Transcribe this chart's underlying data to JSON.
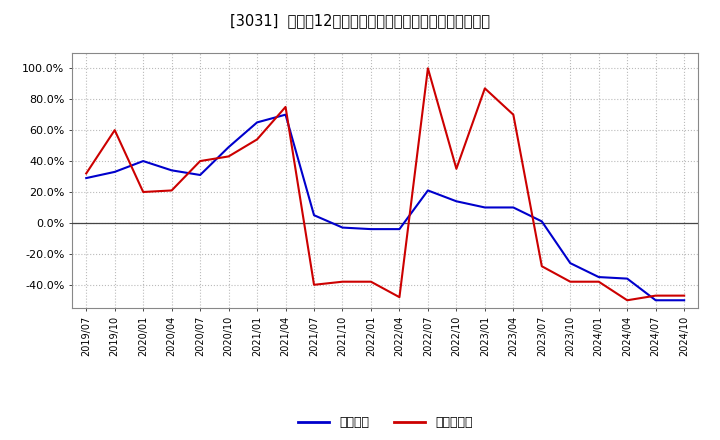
{
  "title": "[3031]  利益だ12か月移動合計の対前年同期増減率の推移",
  "ylim": [
    -0.55,
    1.1
  ],
  "yticks": [
    -0.4,
    -0.2,
    0.0,
    0.2,
    0.4,
    0.6,
    0.8,
    1.0
  ],
  "ytick_labels": [
    "-40.0%",
    "-20.0%",
    "0.0%",
    "20.0%",
    "40.0%",
    "60.0%",
    "80.0%",
    "100.0%"
  ],
  "legend_labels": [
    "経常利益",
    "当期純利益"
  ],
  "line_colors": [
    "#0000cc",
    "#cc0000"
  ],
  "background_color": "#ffffff",
  "plot_bg_color": "#ffffff",
  "grid_color": "#bbbbbb",
  "dates": [
    "2019/07",
    "2019/10",
    "2020/01",
    "2020/04",
    "2020/07",
    "2020/10",
    "2021/01",
    "2021/04",
    "2021/07",
    "2021/10",
    "2022/01",
    "2022/04",
    "2022/07",
    "2022/10",
    "2023/01",
    "2023/04",
    "2023/07",
    "2023/10",
    "2024/01",
    "2024/04",
    "2024/07",
    "2024/10"
  ],
  "keijo_rieki": [
    0.29,
    0.33,
    0.4,
    0.34,
    0.31,
    0.49,
    0.65,
    0.7,
    0.05,
    -0.03,
    -0.04,
    -0.04,
    0.21,
    0.14,
    0.1,
    0.1,
    0.01,
    -0.26,
    -0.35,
    -0.36,
    -0.5,
    -0.5
  ],
  "toki_jun_rieki": [
    0.32,
    0.6,
    0.2,
    0.21,
    0.4,
    0.43,
    0.54,
    0.75,
    -0.4,
    -0.38,
    -0.38,
    -0.48,
    1.0,
    0.35,
    0.87,
    0.7,
    -0.28,
    -0.38,
    -0.38,
    -0.5,
    -0.47,
    -0.47
  ]
}
